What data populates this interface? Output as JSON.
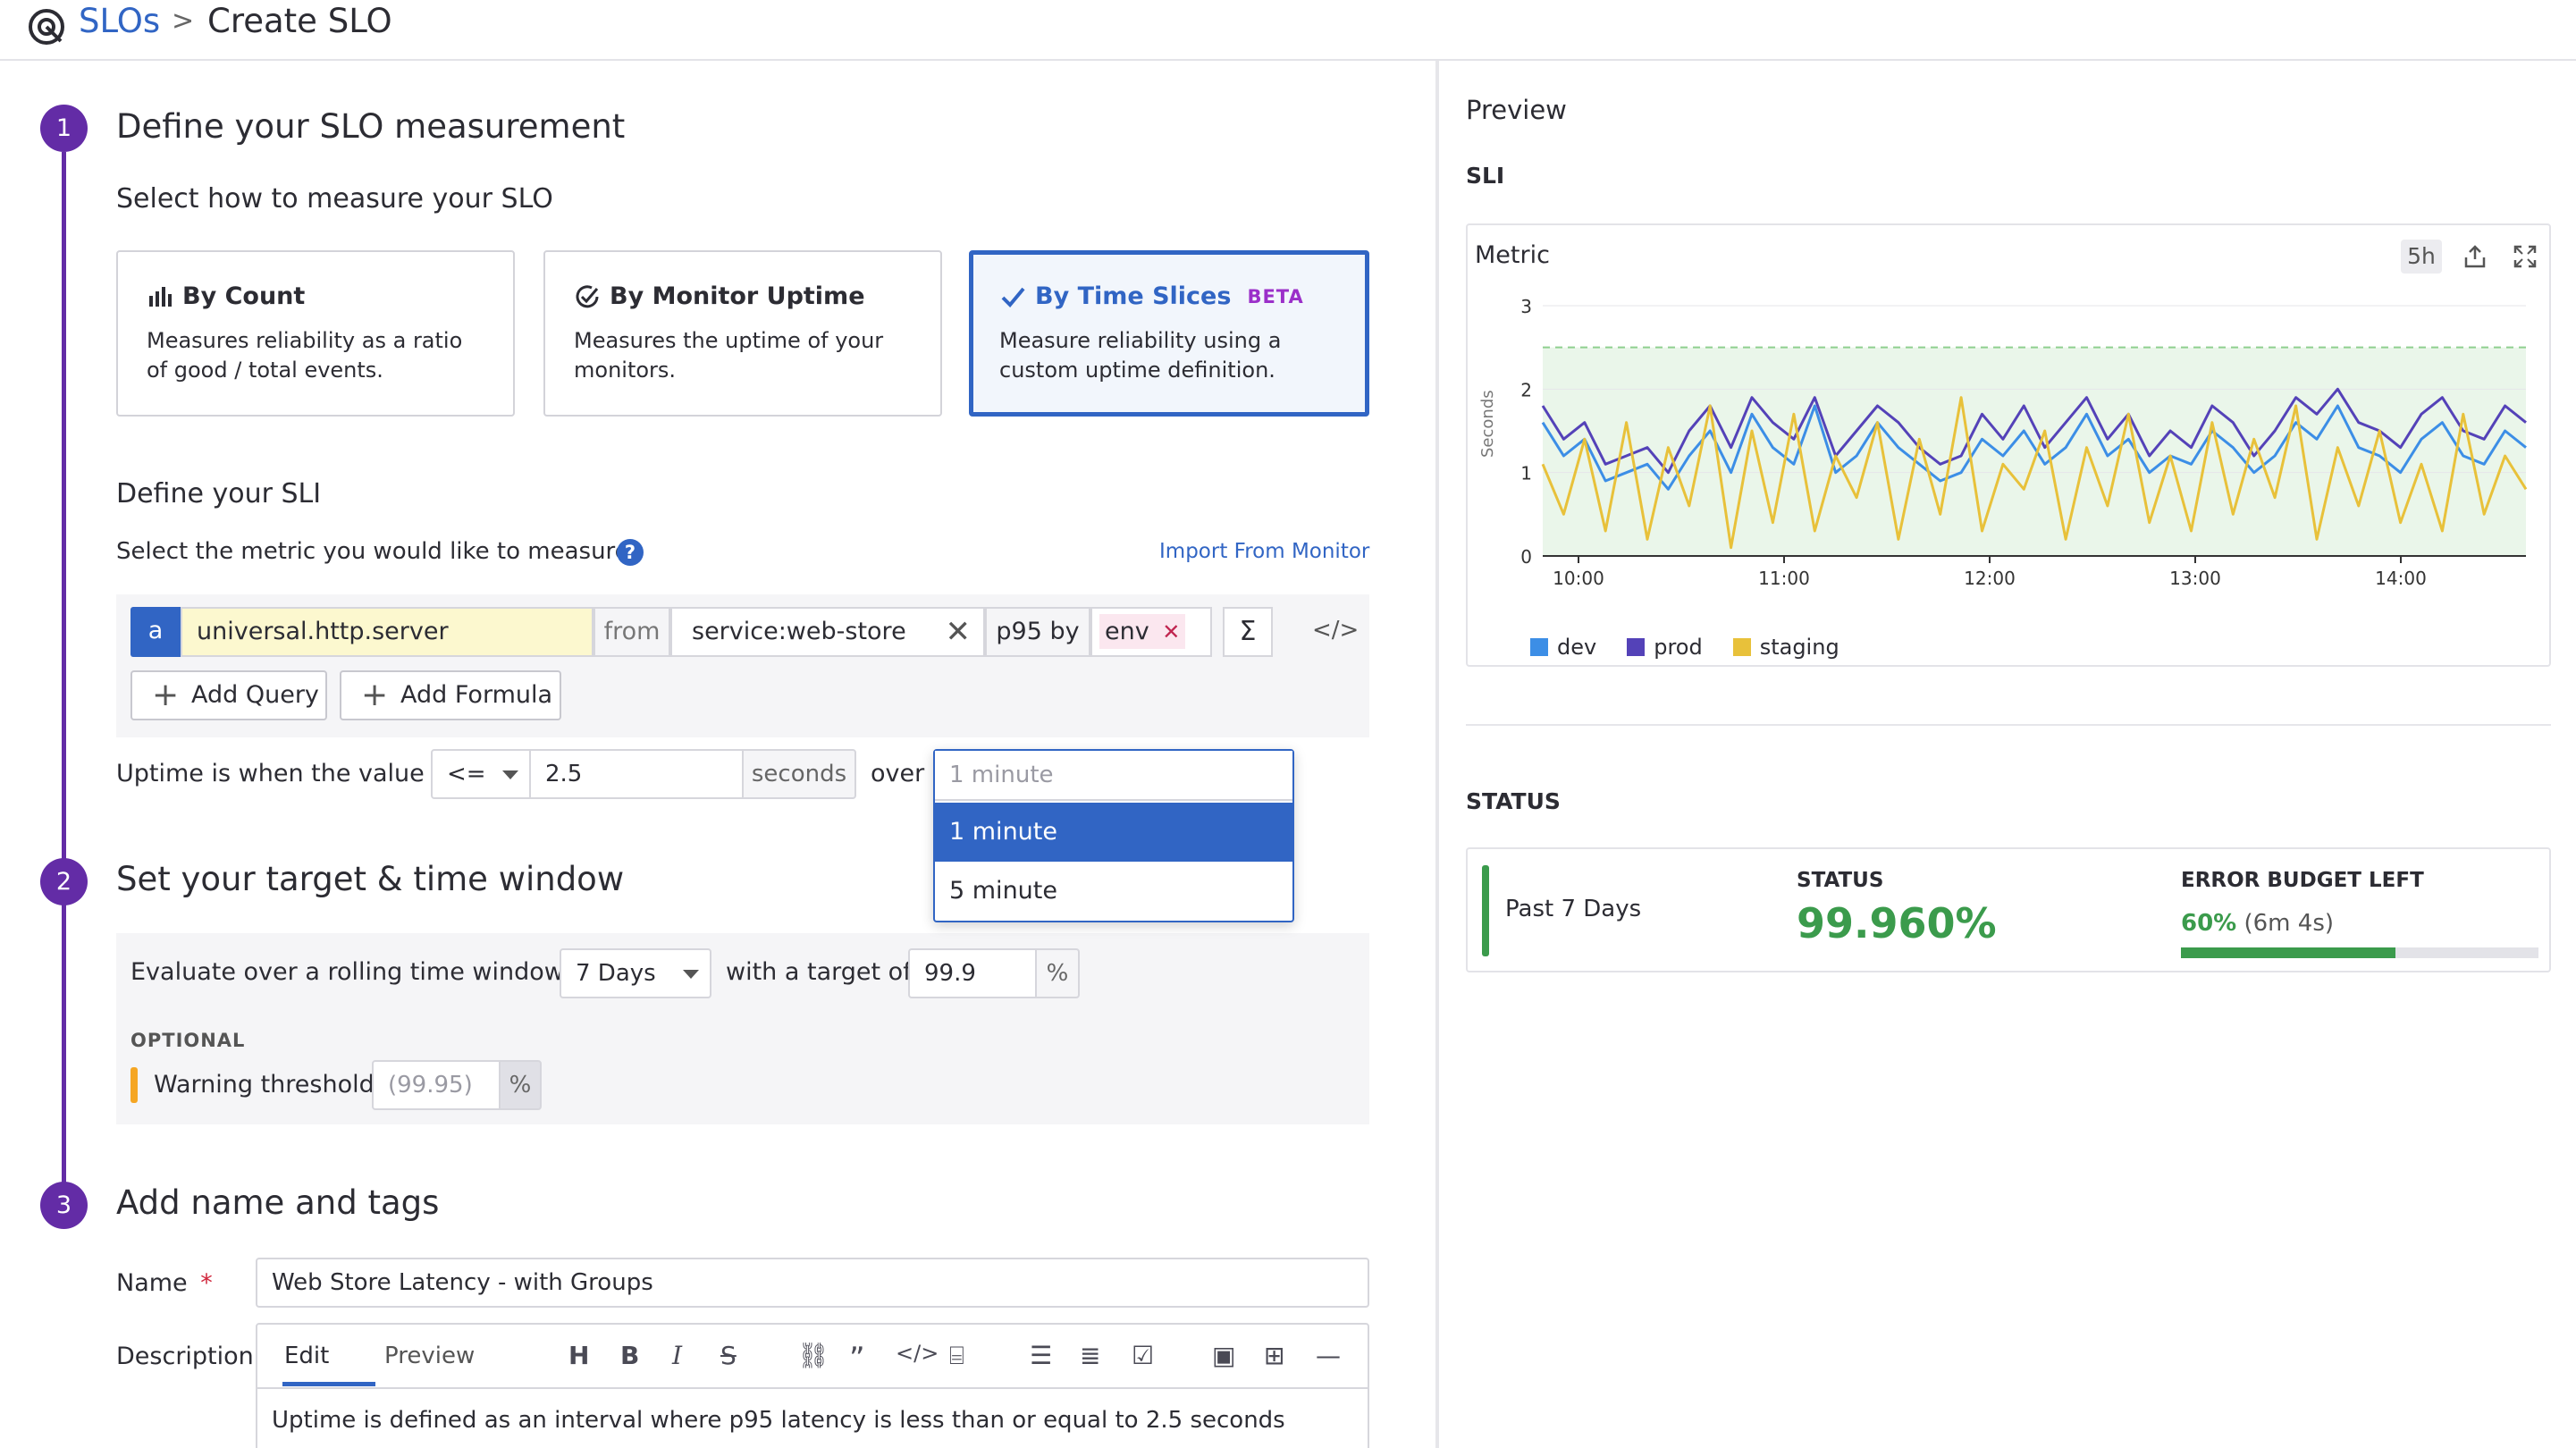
{
  "breadcrumb": {
    "parent": "SLOs",
    "separator": ">",
    "current": "Create SLO"
  },
  "steps": [
    {
      "number": "1",
      "title": "Define your SLO measurement"
    },
    {
      "number": "2",
      "title": "Set your target & time window"
    },
    {
      "number": "3",
      "title": "Add name and tags"
    }
  ],
  "measure": {
    "heading": "Select how to measure your SLO",
    "cards": [
      {
        "title": "By Count",
        "icon": "bar-chart-icon",
        "description": "Measures reliability as a ratio of good / total events.",
        "selected": false
      },
      {
        "title": "By Monitor Uptime",
        "icon": "monitor-check-icon",
        "description": "Measures the uptime of your monitors.",
        "selected": false
      },
      {
        "title": "By Time Slices",
        "icon": "check-icon",
        "badge": "BETA",
        "description": "Measure reliability using a custom uptime definition.",
        "selected": true
      }
    ]
  },
  "sli": {
    "heading": "Define your SLI",
    "prompt": "Select the metric you would like to measure.",
    "import_link": "Import From Monitor",
    "query": {
      "label": "a",
      "metric": "universal.http.server",
      "from_label": "from",
      "from_value": "service:web-store",
      "agg": "p95 by",
      "group_tag": "env",
      "sigma": "Σ",
      "code": "</>"
    },
    "add_query": "Add Query",
    "add_formula": "Add Formula",
    "uptime": {
      "label": "Uptime is when the value is",
      "operator": "<=",
      "value": "2.5",
      "unit": "seconds",
      "over_label": "over",
      "window_placeholder": "1 minute",
      "options": [
        "1 minute",
        "5 minute"
      ],
      "selected_index": 0
    }
  },
  "target": {
    "label": "Evaluate over a rolling time window of",
    "window": "7 Days",
    "with_target_label": "with a target of",
    "target_value": "99.9",
    "percent": "%",
    "optional_label": "OPTIONAL",
    "warning_label": "Warning threshold",
    "warning_placeholder": "(99.95)",
    "warning_color": "#f5a623"
  },
  "name_tags": {
    "name_label": "Name",
    "required_mark": "*",
    "name_value": "Web Store Latency - with Groups",
    "description_label": "Description",
    "tabs": [
      "Edit",
      "Preview"
    ],
    "active_tab": "Edit",
    "toolbar_icons": [
      "heading-icon",
      "bold-icon",
      "italic-icon",
      "strikethrough-icon",
      "link-icon",
      "quote-icon",
      "code-icon",
      "code-block-icon",
      "bullet-list-icon",
      "numbered-list-icon",
      "checkbox-icon",
      "image-icon",
      "table-icon",
      "horizontal-rule-icon"
    ],
    "description_value": "Uptime is defined as an interval where p95 latency is less than or equal to 2.5 seconds"
  },
  "preview": {
    "title": "Preview",
    "sli_label": "SLI",
    "widget_title": "Metric",
    "timeframe": "5h",
    "status_heading": "STATUS",
    "status": {
      "period": "Past 7 Days",
      "status_label": "STATUS",
      "status_value": "99.960%",
      "budget_label": "ERROR BUDGET LEFT",
      "budget_value": "60%",
      "budget_detail": "(6m 4s)",
      "budget_fraction": 0.6,
      "color_good": "#3b9b4c"
    }
  },
  "chart_data": {
    "type": "line",
    "ylabel": "Seconds",
    "ylim": [
      0,
      3
    ],
    "yticks": [
      "0",
      "1",
      "2",
      "3"
    ],
    "xticks": [
      "10:00",
      "11:00",
      "12:00",
      "13:00",
      "14:00"
    ],
    "threshold": 2.5,
    "series": [
      {
        "name": "dev",
        "color": "#3c8ee6",
        "values": [
          1.6,
          1.2,
          1.4,
          0.9,
          1.0,
          1.1,
          0.8,
          1.2,
          1.5,
          1.0,
          1.7,
          1.3,
          1.1,
          1.8,
          1.0,
          1.2,
          1.6,
          1.3,
          1.1,
          0.9,
          1.0,
          1.4,
          1.2,
          1.5,
          1.1,
          1.3,
          1.7,
          1.2,
          1.4,
          1.0,
          1.2,
          1.1,
          1.5,
          1.3,
          1.0,
          1.2,
          1.6,
          1.4,
          1.8,
          1.3,
          1.2,
          1.0,
          1.4,
          1.6,
          1.2,
          1.1,
          1.5,
          1.3
        ]
      },
      {
        "name": "prod",
        "color": "#5442b8",
        "values": [
          1.8,
          1.4,
          1.6,
          1.1,
          1.2,
          1.3,
          1.0,
          1.5,
          1.8,
          1.3,
          1.9,
          1.6,
          1.4,
          1.9,
          1.2,
          1.5,
          1.8,
          1.6,
          1.3,
          1.1,
          1.2,
          1.7,
          1.4,
          1.8,
          1.3,
          1.6,
          1.9,
          1.4,
          1.7,
          1.2,
          1.5,
          1.3,
          1.8,
          1.6,
          1.2,
          1.5,
          1.9,
          1.7,
          2.0,
          1.6,
          1.5,
          1.3,
          1.7,
          1.9,
          1.5,
          1.4,
          1.8,
          1.6
        ]
      },
      {
        "name": "staging",
        "color": "#e8c13a",
        "values": [
          1.1,
          0.5,
          1.4,
          0.3,
          1.6,
          0.2,
          1.3,
          0.6,
          1.8,
          0.1,
          1.5,
          0.4,
          1.7,
          0.3,
          1.2,
          0.7,
          1.6,
          0.2,
          1.4,
          0.5,
          1.9,
          0.3,
          1.1,
          0.8,
          1.5,
          0.2,
          1.3,
          0.6,
          1.7,
          0.4,
          1.2,
          0.3,
          1.6,
          0.5,
          1.4,
          0.7,
          1.8,
          0.2,
          1.3,
          0.6,
          1.5,
          0.4,
          1.1,
          0.3,
          1.7,
          0.5,
          1.2,
          0.8
        ]
      }
    ],
    "legend_position": "bottom-left"
  }
}
